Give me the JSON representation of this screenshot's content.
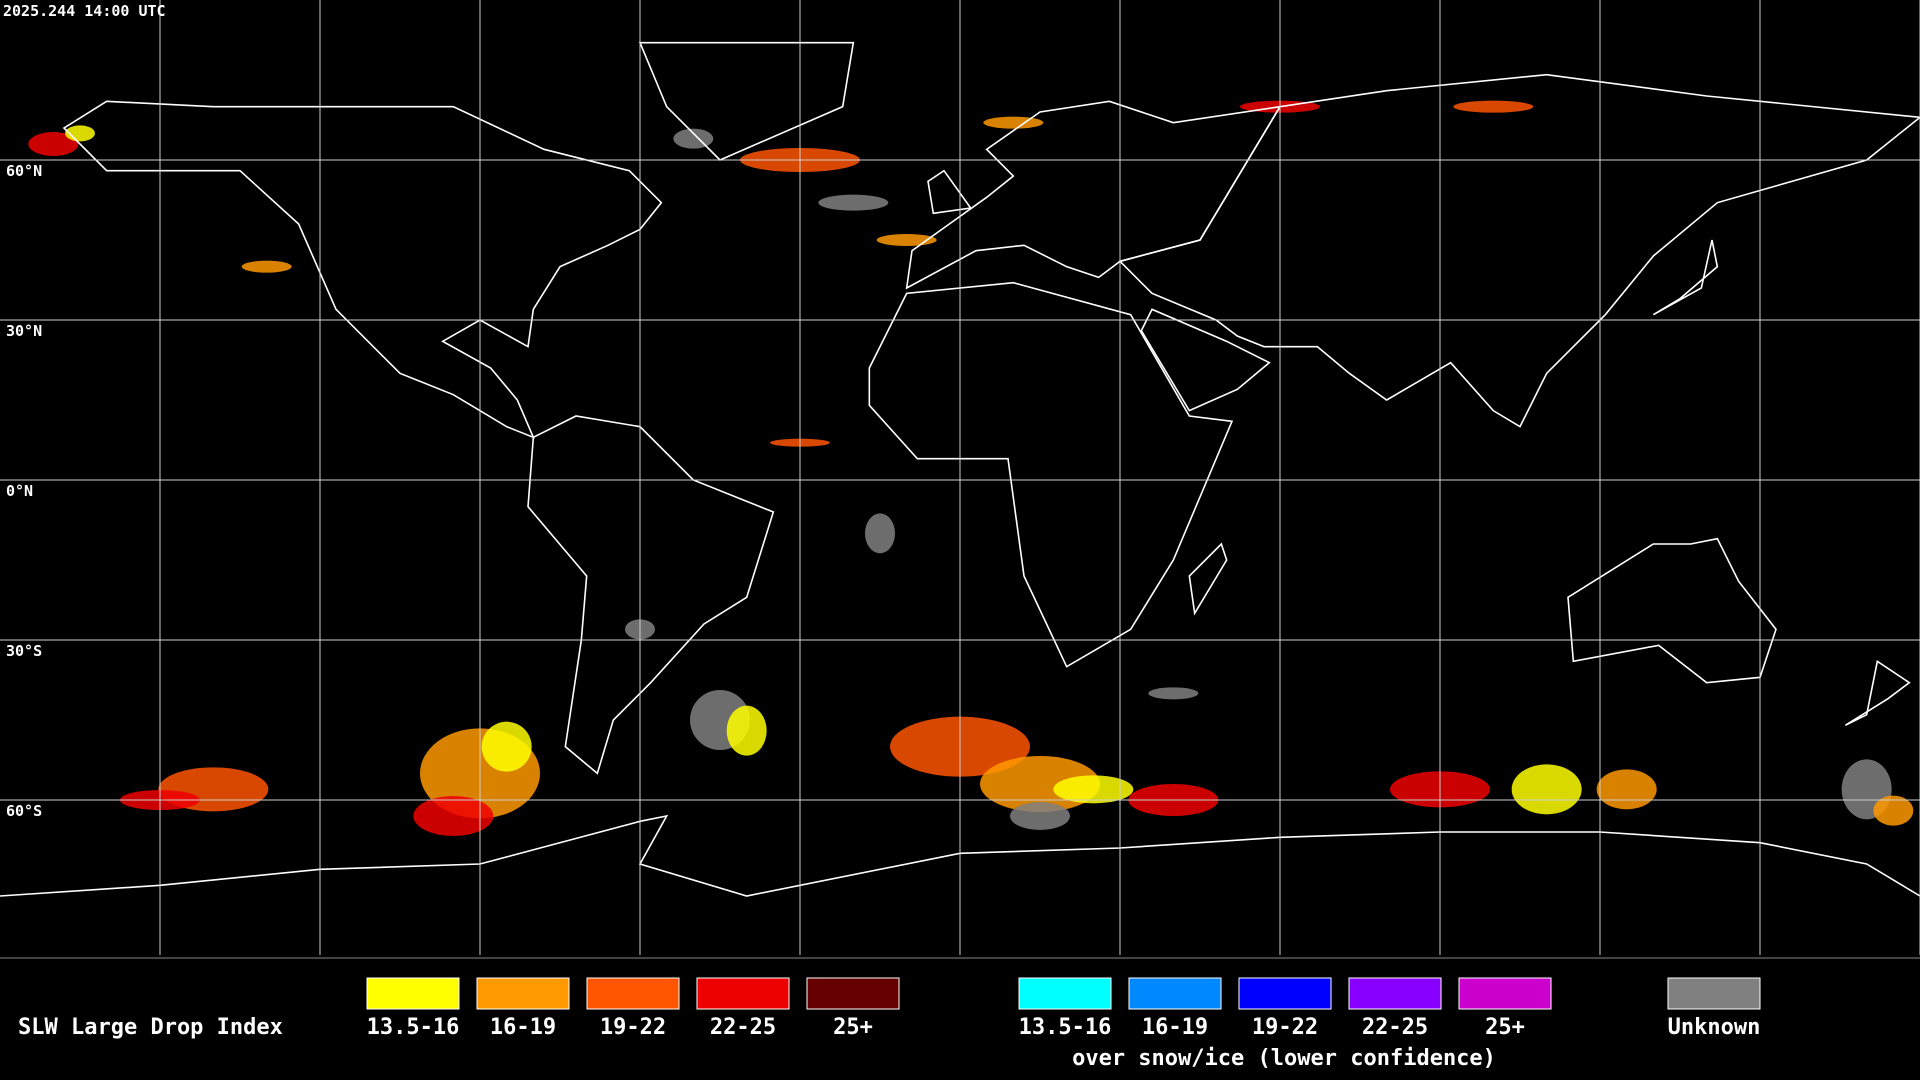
{
  "header": {
    "timestamp": "2025.244 14:00 UTC"
  },
  "map": {
    "latitude_labels": [
      "60°N",
      "30°N",
      "0°N",
      "30°S",
      "60°S"
    ]
  },
  "legend": {
    "title": "SLW Large Drop Index",
    "liquid": [
      {
        "label": "13.5-16",
        "color": "#ffff00"
      },
      {
        "label": "16-19",
        "color": "#ff9900"
      },
      {
        "label": "19-22",
        "color": "#ff5500"
      },
      {
        "label": "22-25",
        "color": "#ee0000"
      },
      {
        "label": "25+",
        "color": "#660000"
      }
    ],
    "snow_ice": [
      {
        "label": "13.5-16",
        "color": "#00ffff"
      },
      {
        "label": "16-19",
        "color": "#0088ff"
      },
      {
        "label": "19-22",
        "color": "#0000ff"
      },
      {
        "label": "22-25",
        "color": "#8800ff"
      },
      {
        "label": "25+",
        "color": "#cc00cc"
      }
    ],
    "snow_ice_note": "over snow/ice (lower confidence)",
    "unknown": {
      "label": "Unknown",
      "color": "#808080"
    }
  }
}
